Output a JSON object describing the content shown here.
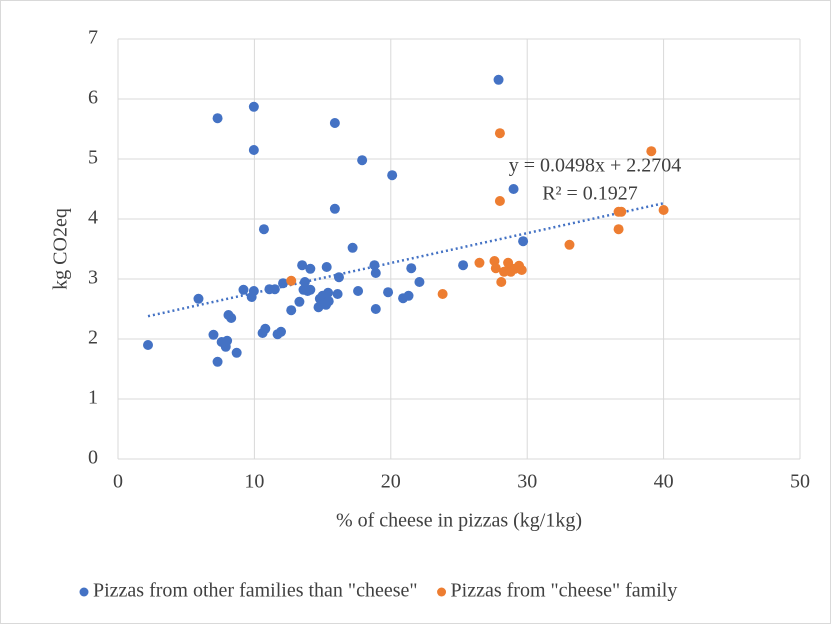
{
  "chart_data": {
    "type": "scatter",
    "x_label": "% of cheese in pizzas (kg/1kg)",
    "y_label": "kg CO2eq",
    "xlim": [
      0,
      50
    ],
    "xticks": [
      0,
      10,
      20,
      30,
      40,
      50
    ],
    "ylim": [
      0,
      7
    ],
    "yticks": [
      0,
      1,
      2,
      3,
      4,
      5,
      6,
      7
    ],
    "grid": true,
    "legend": "bottom",
    "series": [
      {
        "name": "Pizzas from other families than \"cheese\"",
        "color": "#4472c4",
        "x": [
          2.2,
          5.9,
          7.0,
          7.3,
          7.3,
          7.6,
          7.9,
          8.0,
          8.1,
          8.3,
          8.7,
          9.2,
          9.8,
          9.96,
          9.96,
          9.96,
          10.6,
          10.7,
          10.8,
          11.1,
          11.5,
          11.7,
          11.95,
          12.1,
          12.7,
          13.3,
          13.5,
          13.6,
          13.7,
          13.9,
          14.1,
          14.1,
          14.7,
          14.8,
          15.0,
          15.2,
          15.25,
          15.3,
          15.4,
          15.45,
          15.9,
          15.9,
          16.1,
          16.2,
          17.2,
          17.6,
          17.9,
          18.8,
          18.9,
          18.9,
          19.8,
          20.1,
          20.9,
          21.3,
          21.5,
          22.1,
          25.3,
          27.9,
          29.0,
          29.7
        ],
        "values": [
          1.9,
          2.67,
          2.07,
          5.68,
          1.62,
          1.95,
          1.87,
          1.97,
          2.4,
          2.35,
          1.77,
          2.82,
          2.7,
          5.87,
          5.15,
          2.8,
          2.1,
          3.83,
          2.17,
          2.83,
          2.83,
          2.08,
          2.12,
          2.93,
          2.48,
          2.62,
          3.23,
          2.82,
          2.95,
          2.8,
          3.17,
          2.82,
          2.53,
          2.67,
          2.72,
          2.6,
          2.57,
          3.2,
          2.77,
          2.63,
          5.6,
          4.17,
          2.75,
          3.03,
          3.52,
          2.8,
          4.98,
          3.23,
          2.5,
          3.1,
          2.78,
          4.73,
          2.68,
          2.72,
          3.18,
          2.95,
          3.23,
          6.32,
          4.5,
          3.63
        ]
      },
      {
        "name": "Pizzas from \"cheese\" family",
        "color": "#ed7d31",
        "x": [
          12.7,
          23.8,
          26.5,
          27.6,
          27.7,
          28.0,
          28.0,
          28.1,
          28.3,
          28.6,
          28.7,
          28.8,
          29.1,
          29.4,
          29.6,
          33.1,
          36.7,
          36.7,
          36.9,
          39.1,
          40.0
        ],
        "values": [
          2.97,
          2.75,
          3.27,
          3.3,
          3.18,
          5.43,
          4.3,
          2.95,
          3.12,
          3.27,
          3.2,
          3.12,
          3.17,
          3.22,
          3.15,
          3.57,
          4.12,
          3.83,
          4.12,
          5.13,
          4.15
        ]
      }
    ],
    "trendline": {
      "slope": 0.0498,
      "intercept": 2.2704,
      "color": "#4472c4",
      "equation": "y = 0.0498x + 2.2704",
      "r_squared": "R² = 0.1927"
    }
  }
}
